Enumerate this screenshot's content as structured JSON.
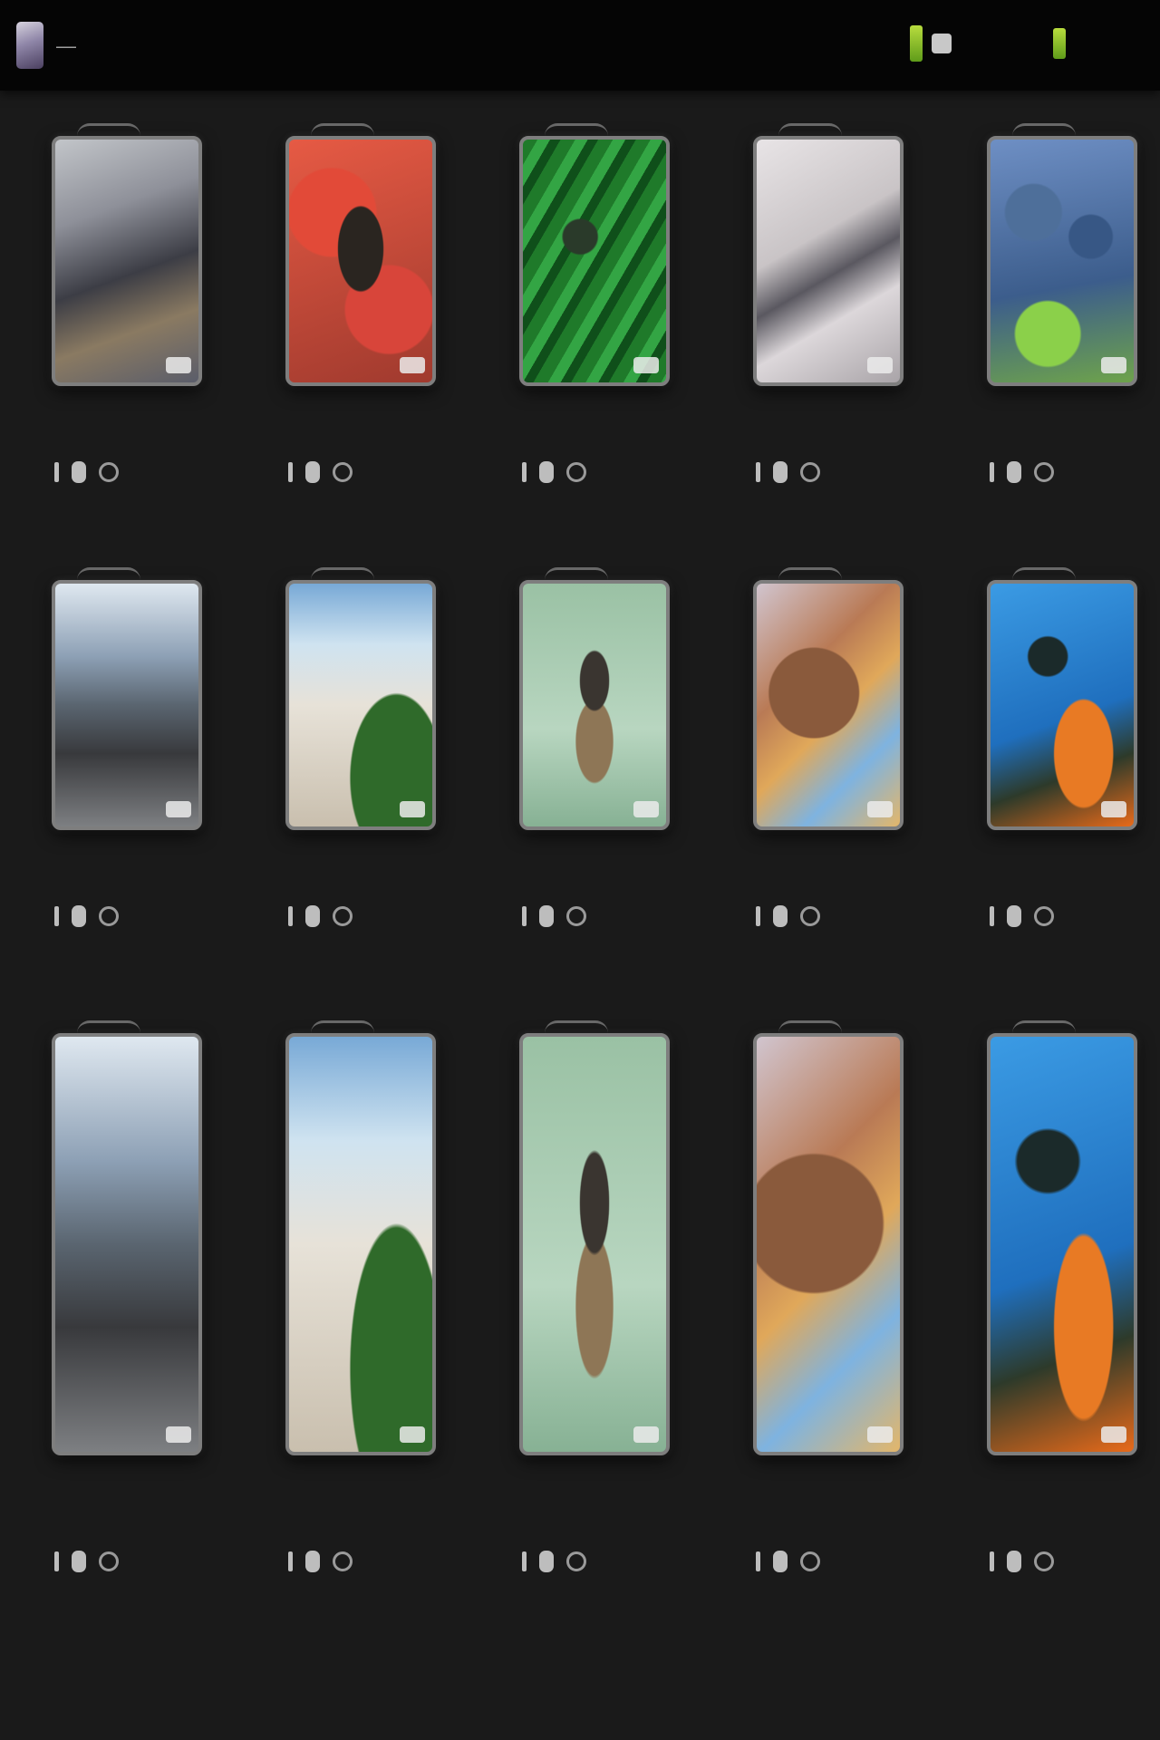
{
  "header": {
    "title": "—",
    "actions": [
      {
        "label": "",
        "icon": "phone-icon"
      },
      {
        "label": "",
        "icon": "phone-small-icon"
      }
    ]
  },
  "accent_color": "#9acd32",
  "cards": [
    {
      "thumb_kind": "people"
    },
    {
      "thumb_kind": "crab"
    },
    {
      "thumb_kind": "leaves"
    },
    {
      "thumb_kind": "sign"
    },
    {
      "thumb_kind": "flowers"
    },
    {
      "thumb_kind": "mountain"
    },
    {
      "thumb_kind": "beach"
    },
    {
      "thumb_kind": "dog"
    },
    {
      "thumb_kind": "cake"
    },
    {
      "thumb_kind": "butterfly"
    },
    {
      "thumb_kind": "mountain"
    },
    {
      "thumb_kind": "beach"
    },
    {
      "thumb_kind": "dog"
    },
    {
      "thumb_kind": "cake"
    },
    {
      "thumb_kind": "butterfly"
    }
  ]
}
